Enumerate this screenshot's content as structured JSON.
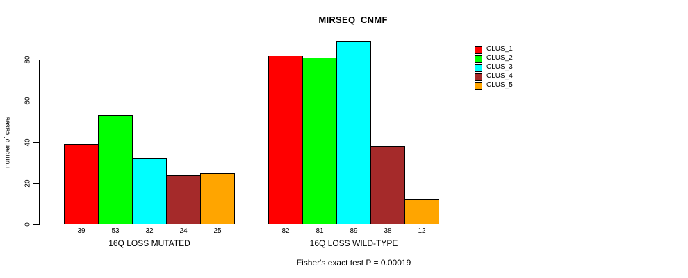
{
  "chart_data": {
    "type": "bar",
    "title": "MIRSEQ_CNMF",
    "ylabel": "number of cases",
    "xlabel": "",
    "ylim": [
      0,
      89
    ],
    "yticks": [
      0,
      20,
      40,
      60,
      80
    ],
    "grid": false,
    "legend_position": "right",
    "series": [
      {
        "name": "CLUS_1",
        "color": "#FF0000"
      },
      {
        "name": "CLUS_2",
        "color": "#00FF00"
      },
      {
        "name": "CLUS_3",
        "color": "#00FFFF"
      },
      {
        "name": "CLUS_4",
        "color": "#A52A2A"
      },
      {
        "name": "CLUS_5",
        "color": "#FFA500"
      }
    ],
    "categories": [
      "16Q LOSS MUTATED",
      "16Q LOSS WILD-TYPE"
    ],
    "groups": [
      {
        "label": "16Q LOSS MUTATED",
        "values": [
          39,
          53,
          32,
          24,
          25
        ]
      },
      {
        "label": "16Q LOSS WILD-TYPE",
        "values": [
          82,
          81,
          89,
          38,
          12
        ]
      }
    ],
    "bar_value_labels": [
      [
        "39",
        "53",
        "32",
        "24",
        "25"
      ],
      [
        "82",
        "81",
        "89",
        "38",
        "12"
      ]
    ],
    "annotation": "Fisher's exact test P = 0.00019"
  }
}
